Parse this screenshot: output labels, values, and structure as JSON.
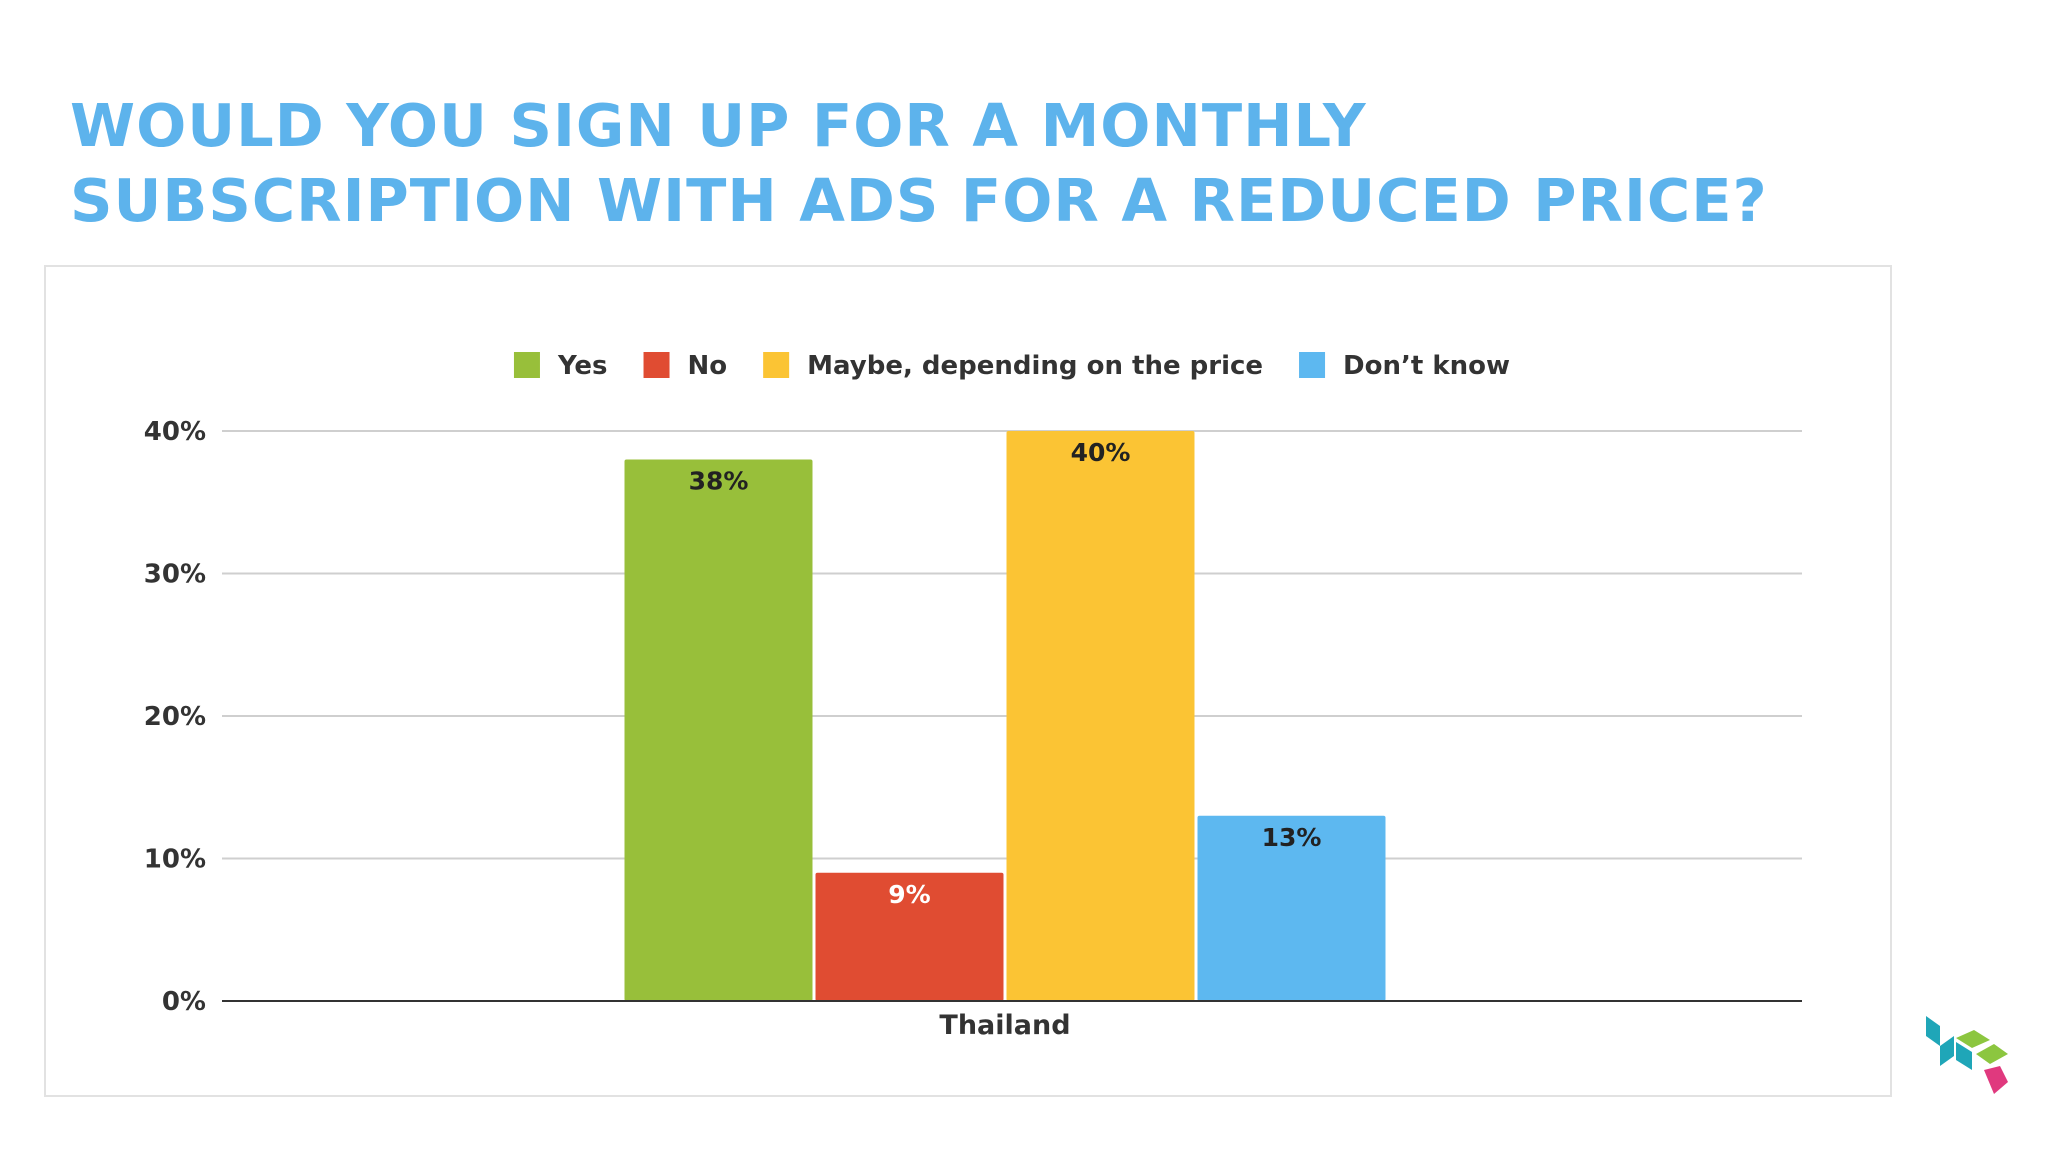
{
  "slide": {
    "title_line1": "WOULD YOU SIGN UP FOR A MONTHLY",
    "title_line2": "SUBSCRIPTION WITH ADS FOR A REDUCED PRICE?",
    "title_color": "#5db3ec"
  },
  "logo": {
    "icon": "cube-logo-icon",
    "colors": [
      "#1fa6b8",
      "#8cc63f",
      "#e0397e"
    ]
  },
  "chart_data": {
    "type": "bar",
    "title": "",
    "xlabel": "",
    "ylabel": "",
    "categories": [
      "Thailand"
    ],
    "series": [
      {
        "name": "Yes",
        "values": [
          38
        ],
        "labels": [
          "38%"
        ],
        "color": "#98bf3a",
        "label_color": "#222222"
      },
      {
        "name": "No",
        "values": [
          9
        ],
        "labels": [
          "9%"
        ],
        "color": "#e04c32",
        "label_color": "#ffffff"
      },
      {
        "name": "Maybe, depending on the price",
        "values": [
          40
        ],
        "labels": [
          "40%"
        ],
        "color": "#fbc434",
        "label_color": "#222222"
      },
      {
        "name": "Don’t know",
        "values": [
          13
        ],
        "labels": [
          "13%"
        ],
        "color": "#5db8f0",
        "label_color": "#222222"
      }
    ],
    "ylim": [
      0,
      40
    ],
    "yticks": [
      0,
      10,
      20,
      30,
      40
    ],
    "ytick_labels": [
      "0%",
      "10%",
      "20%",
      "30%",
      "40%"
    ],
    "grid": true,
    "legend_position": "top"
  }
}
